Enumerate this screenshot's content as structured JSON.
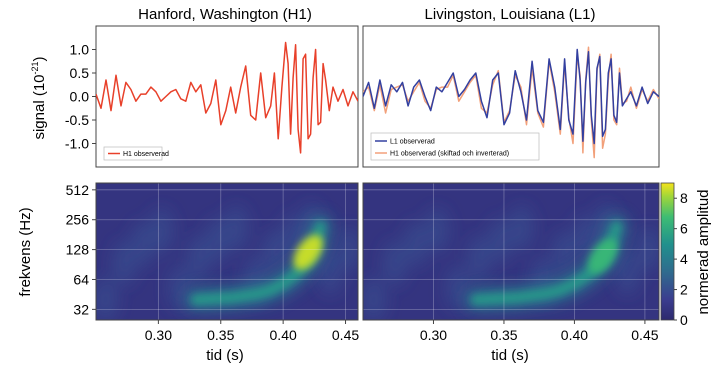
{
  "chart_data": [
    {
      "type": "line",
      "panel": "top-left",
      "title": "Hanford, Washington (H1)",
      "ylabel": "signal (10",
      "ylabel_exp": "-21",
      "ylabel_close": ")",
      "ylim": [
        -1.5,
        1.5
      ],
      "yticks": [
        "1.0",
        "0.5",
        "0.0",
        "-0.5",
        "-1.0"
      ],
      "ytick_values": [
        1.0,
        0.5,
        0.0,
        -0.5,
        -1.0
      ],
      "xlim": [
        0.25,
        0.46
      ],
      "legend": {
        "placement": "bottom-left"
      },
      "series": [
        {
          "name": "H1 observerad",
          "color": "#e8402a",
          "x": [
            0.25,
            0.254,
            0.258,
            0.262,
            0.266,
            0.27,
            0.274,
            0.278,
            0.282,
            0.286,
            0.29,
            0.294,
            0.298,
            0.302,
            0.306,
            0.31,
            0.314,
            0.318,
            0.322,
            0.326,
            0.33,
            0.334,
            0.338,
            0.342,
            0.346,
            0.35,
            0.354,
            0.358,
            0.362,
            0.366,
            0.37,
            0.374,
            0.378,
            0.382,
            0.386,
            0.39,
            0.393,
            0.396,
            0.399,
            0.402,
            0.404,
            0.406,
            0.408,
            0.41,
            0.412,
            0.414,
            0.416,
            0.418,
            0.42,
            0.422,
            0.424,
            0.426,
            0.428,
            0.43,
            0.432,
            0.434,
            0.437,
            0.44,
            0.444,
            0.448,
            0.452,
            0.456,
            0.46
          ],
          "y": [
            0.05,
            -0.25,
            0.35,
            -0.3,
            0.45,
            -0.2,
            0.3,
            0.15,
            -0.1,
            0.05,
            0.05,
            0.2,
            0.1,
            -0.1,
            0.0,
            0.1,
            0.15,
            -0.05,
            -0.1,
            0.3,
            0.1,
            0.25,
            -0.35,
            -0.15,
            0.35,
            -0.6,
            -0.3,
            0.2,
            -0.35,
            0.2,
            0.65,
            -0.4,
            -0.5,
            0.5,
            -0.45,
            -0.2,
            0.5,
            -0.9,
            0.2,
            1.15,
            0.7,
            -0.8,
            0.4,
            1.1,
            -0.7,
            -1.2,
            0.8,
            0.9,
            -0.9,
            -0.8,
            0.4,
            1.0,
            -0.6,
            -0.55,
            0.7,
            0.35,
            -0.3,
            0.2,
            -0.1,
            0.15,
            -0.2,
            0.1,
            -0.1
          ]
        }
      ]
    },
    {
      "type": "line",
      "panel": "top-right",
      "title": "Livingston, Louisiana (L1)",
      "ylim": [
        -1.5,
        1.5
      ],
      "xlim": [
        0.25,
        0.46
      ],
      "legend": {
        "placement": "bottom-left"
      },
      "series": [
        {
          "name": "L1 observerad",
          "color": "#3340a0",
          "x": [
            0.25,
            0.254,
            0.258,
            0.262,
            0.266,
            0.27,
            0.274,
            0.278,
            0.282,
            0.286,
            0.29,
            0.294,
            0.298,
            0.302,
            0.306,
            0.31,
            0.314,
            0.318,
            0.322,
            0.326,
            0.33,
            0.334,
            0.338,
            0.342,
            0.346,
            0.35,
            0.354,
            0.358,
            0.362,
            0.366,
            0.37,
            0.374,
            0.378,
            0.382,
            0.386,
            0.39,
            0.393,
            0.396,
            0.399,
            0.402,
            0.404,
            0.406,
            0.408,
            0.41,
            0.412,
            0.414,
            0.416,
            0.418,
            0.42,
            0.422,
            0.424,
            0.426,
            0.428,
            0.43,
            0.432,
            0.434,
            0.437,
            0.44,
            0.444,
            0.448,
            0.452,
            0.456,
            0.46
          ],
          "y": [
            0.0,
            0.3,
            -0.25,
            0.35,
            -0.2,
            0.25,
            0.1,
            0.3,
            -0.2,
            0.2,
            0.35,
            0.0,
            -0.3,
            0.2,
            0.1,
            0.3,
            0.5,
            0.0,
            0.15,
            0.35,
            0.5,
            -0.1,
            -0.45,
            0.35,
            0.5,
            -0.6,
            -0.35,
            0.55,
            0.1,
            -0.5,
            0.75,
            -0.3,
            -0.55,
            0.8,
            0.2,
            -0.7,
            0.8,
            -0.5,
            -0.8,
            1.0,
            0.35,
            -0.95,
            0.3,
            0.95,
            -0.4,
            -1.0,
            0.6,
            0.85,
            -0.85,
            -0.7,
            0.5,
            0.8,
            -0.4,
            -0.55,
            0.5,
            -0.2,
            -0.05,
            0.1,
            -0.2,
            0.2,
            -0.15,
            0.1,
            0.0
          ]
        },
        {
          "name": "H1 observerad (skiftad och inverterad)",
          "color": "#f2a07a",
          "x": [
            0.25,
            0.254,
            0.258,
            0.262,
            0.266,
            0.27,
            0.274,
            0.278,
            0.282,
            0.286,
            0.29,
            0.294,
            0.298,
            0.302,
            0.306,
            0.31,
            0.314,
            0.318,
            0.322,
            0.326,
            0.33,
            0.334,
            0.338,
            0.342,
            0.346,
            0.35,
            0.354,
            0.358,
            0.362,
            0.366,
            0.37,
            0.374,
            0.378,
            0.382,
            0.386,
            0.39,
            0.393,
            0.396,
            0.399,
            0.402,
            0.404,
            0.406,
            0.408,
            0.41,
            0.412,
            0.414,
            0.416,
            0.418,
            0.42,
            0.422,
            0.424,
            0.426,
            0.428,
            0.43,
            0.432,
            0.434,
            0.437,
            0.44,
            0.444,
            0.448,
            0.452,
            0.456,
            0.46
          ],
          "y": [
            0.1,
            0.2,
            -0.3,
            0.25,
            -0.35,
            0.15,
            0.2,
            0.25,
            -0.1,
            0.1,
            0.3,
            -0.1,
            -0.25,
            0.15,
            0.2,
            0.2,
            0.45,
            -0.1,
            0.1,
            0.3,
            0.45,
            -0.25,
            -0.35,
            0.25,
            0.55,
            -0.55,
            -0.3,
            0.45,
            0.2,
            -0.6,
            0.6,
            -0.35,
            -0.65,
            0.75,
            0.1,
            -0.8,
            0.7,
            -0.45,
            -1.0,
            0.85,
            0.45,
            -1.2,
            0.35,
            1.05,
            -0.5,
            -1.3,
            0.55,
            0.9,
            -1.1,
            -0.8,
            0.35,
            0.9,
            -0.5,
            -0.6,
            0.6,
            -0.15,
            -0.1,
            0.2,
            -0.25,
            0.15,
            -0.1,
            0.15,
            -0.05
          ]
        }
      ]
    },
    {
      "type": "heatmap",
      "panel": "bottom-left",
      "xlabel": "tid (s)",
      "ylabel": "frekvens (Hz)",
      "xlim": [
        0.25,
        0.46
      ],
      "xticks": [
        "0.30",
        "0.35",
        "0.40",
        "0.45"
      ],
      "xtick_values": [
        0.3,
        0.35,
        0.4,
        0.45
      ],
      "ylim": [
        25,
        600
      ],
      "yscale": "log",
      "yticks": [
        "512",
        "256",
        "128",
        "64",
        "32"
      ],
      "ytick_values": [
        512,
        256,
        128,
        64,
        32
      ],
      "grid": true,
      "track": {
        "t": [
          0.33,
          0.36,
          0.38,
          0.39,
          0.4,
          0.41,
          0.42,
          0.425,
          0.43
        ],
        "f": [
          40,
          42,
          46,
          50,
          58,
          72,
          98,
          130,
          220
        ]
      },
      "peak": {
        "t": 0.42,
        "f": 120,
        "value": 8.5
      }
    },
    {
      "type": "heatmap",
      "panel": "bottom-right",
      "xlabel": "tid (s)",
      "xlim": [
        0.25,
        0.46
      ],
      "xticks": [
        "0.30",
        "0.35",
        "0.40",
        "0.45"
      ],
      "xtick_values": [
        0.3,
        0.35,
        0.4,
        0.45
      ],
      "ylim": [
        25,
        600
      ],
      "yscale": "log",
      "ytick_values": [
        512,
        256,
        128,
        64,
        32
      ],
      "grid": true,
      "track": {
        "t": [
          0.33,
          0.36,
          0.38,
          0.39,
          0.4,
          0.41,
          0.42,
          0.425,
          0.43
        ],
        "f": [
          40,
          42,
          46,
          50,
          58,
          72,
          98,
          130,
          220
        ]
      },
      "peak": {
        "t": 0.42,
        "f": 110,
        "value": 6.5
      }
    }
  ],
  "colorbar": {
    "label": "normerad amplitud",
    "ticks": [
      "8",
      "6",
      "4",
      "2",
      "0"
    ],
    "tick_values": [
      8,
      6,
      4,
      2,
      0
    ],
    "range": [
      0,
      9
    ]
  },
  "colors": {
    "background": "#2b2f73",
    "colormap": "viridis"
  }
}
